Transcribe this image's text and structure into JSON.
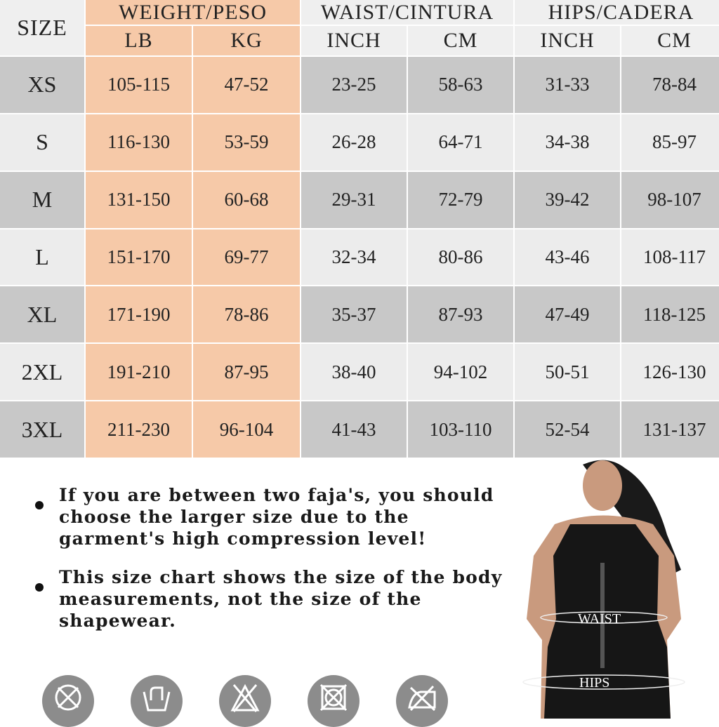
{
  "header": {
    "size": "SIZE",
    "weight": "WEIGHT/PESO",
    "waist": "WAIST/CINTURA",
    "hips": "HIPS/CADERA",
    "units": [
      "LB",
      "KG",
      "INCH",
      "CM",
      "INCH",
      "CM"
    ]
  },
  "rows": [
    [
      "XS",
      "105-115",
      "47-52",
      "23-25",
      "58-63",
      "31-33",
      "78-84"
    ],
    [
      "S",
      "116-130",
      "53-59",
      "26-28",
      "64-71",
      "34-38",
      "85-97"
    ],
    [
      "M",
      "131-150",
      "60-68",
      "29-31",
      "72-79",
      "39-42",
      "98-107"
    ],
    [
      "L",
      "151-170",
      "69-77",
      "32-34",
      "80-86",
      "43-46",
      "108-117"
    ],
    [
      "XL",
      "171-190",
      "78-86",
      "35-37",
      "87-93",
      "47-49",
      "118-125"
    ],
    [
      "2XL",
      "191-210",
      "87-95",
      "38-40",
      "94-102",
      "50-51",
      "126-130"
    ],
    [
      "3XL",
      "211-230",
      "96-104",
      "41-43",
      "103-110",
      "52-54",
      "131-137"
    ]
  ],
  "notes": [
    "If you are between two faja's, you should choose the larger size due to the garment's high compression level!",
    "This size chart shows the size of the body measurements, not the size of the shapewear."
  ],
  "model": {
    "waist_label": "WAIST",
    "hips_label": "HIPS"
  },
  "care_icons": [
    "do-not-tumble-dry",
    "hand-wash",
    "do-not-bleach",
    "do-not-dry-clean",
    "do-not-iron"
  ],
  "colors": {
    "weight_column": "#f6c9a8",
    "row_dark": "#c8c8c8",
    "row_light": "#ececec",
    "icon": "#8c8c8c"
  }
}
